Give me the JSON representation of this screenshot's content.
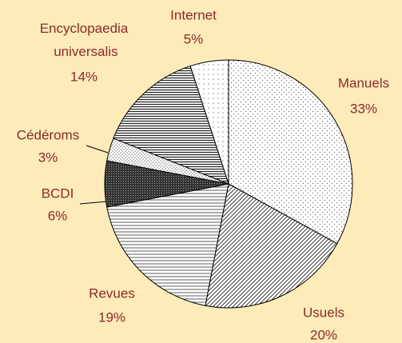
{
  "chart_data": {
    "type": "pie",
    "categories": [
      "Manuels",
      "Usuels",
      "Revues",
      "BCDI",
      "Cédéroms",
      "Encyclopaedia universalis",
      "Internet"
    ],
    "values": [
      33,
      20,
      19,
      6,
      3,
      14,
      5
    ],
    "value_labels": [
      "33%",
      "20%",
      "19%",
      "6%",
      "3%",
      "14%",
      "5%"
    ]
  }
}
